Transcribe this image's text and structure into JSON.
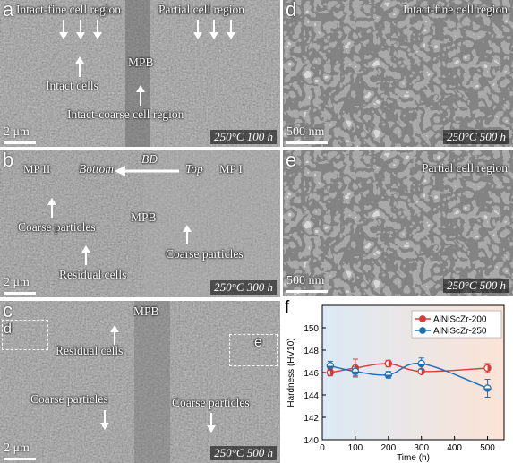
{
  "panels": {
    "a": {
      "letter": "a",
      "labels": [
        "Intact-fine cell region",
        "Partial cell region",
        "MPB",
        "Intact cells",
        "Intact-coarse cell region"
      ],
      "scale": "2 μm",
      "condition": "250°C 100 h"
    },
    "b": {
      "letter": "b",
      "labels": [
        "MP II",
        "Bottom",
        "BD",
        "Top",
        "MP I",
        "Coarse particles",
        "MPB",
        "Coarse particles",
        "Residual cells"
      ],
      "scale": "2 μm",
      "condition": "250°C 300 h"
    },
    "c": {
      "letter": "c",
      "labels": [
        "MPB",
        "Residual cells",
        "Coarse particles",
        "Coarse particles",
        "d",
        "e"
      ],
      "scale": "2 μm",
      "condition": "250°C 500 h"
    },
    "d": {
      "letter": "d",
      "labels": [
        "Intact-fine cell region"
      ],
      "scale": "500 nm",
      "condition": "250°C 500 h"
    },
    "e": {
      "letter": "e",
      "labels": [
        "Partial cell region"
      ],
      "scale": "500 nm",
      "condition": "250°C 500 h"
    }
  },
  "chart_panel_letter": "f",
  "chart_data": {
    "type": "line",
    "xlabel": "Time (h)",
    "ylabel": "Hardness (HV10)",
    "xlim": [
      0,
      550
    ],
    "ylim": [
      140,
      152
    ],
    "xticks": [
      "0",
      "100",
      "200",
      "300",
      "400",
      "500"
    ],
    "yticks": [
      "140",
      "142",
      "144",
      "146",
      "148",
      "150"
    ],
    "legend_position": "top-right",
    "colors": {
      "series1": "#d93a3a",
      "series2": "#1f6fb5",
      "bg_left": "#dce9f5",
      "bg_right": "#fbe3d6"
    },
    "series": [
      {
        "name": "AlNiScZr-200",
        "x": [
          24,
          100,
          200,
          300,
          500
        ],
        "y": [
          146.0,
          146.4,
          146.8,
          146.1,
          146.4
        ],
        "err": [
          0.3,
          0.8,
          0.3,
          0.2,
          0.4
        ]
      },
      {
        "name": "AlNiScZr-250",
        "x": [
          24,
          100,
          200,
          300,
          500
        ],
        "y": [
          146.6,
          146.1,
          145.8,
          146.8,
          144.6
        ],
        "err": [
          0.4,
          0.4,
          0.3,
          0.5,
          0.8
        ]
      }
    ]
  }
}
